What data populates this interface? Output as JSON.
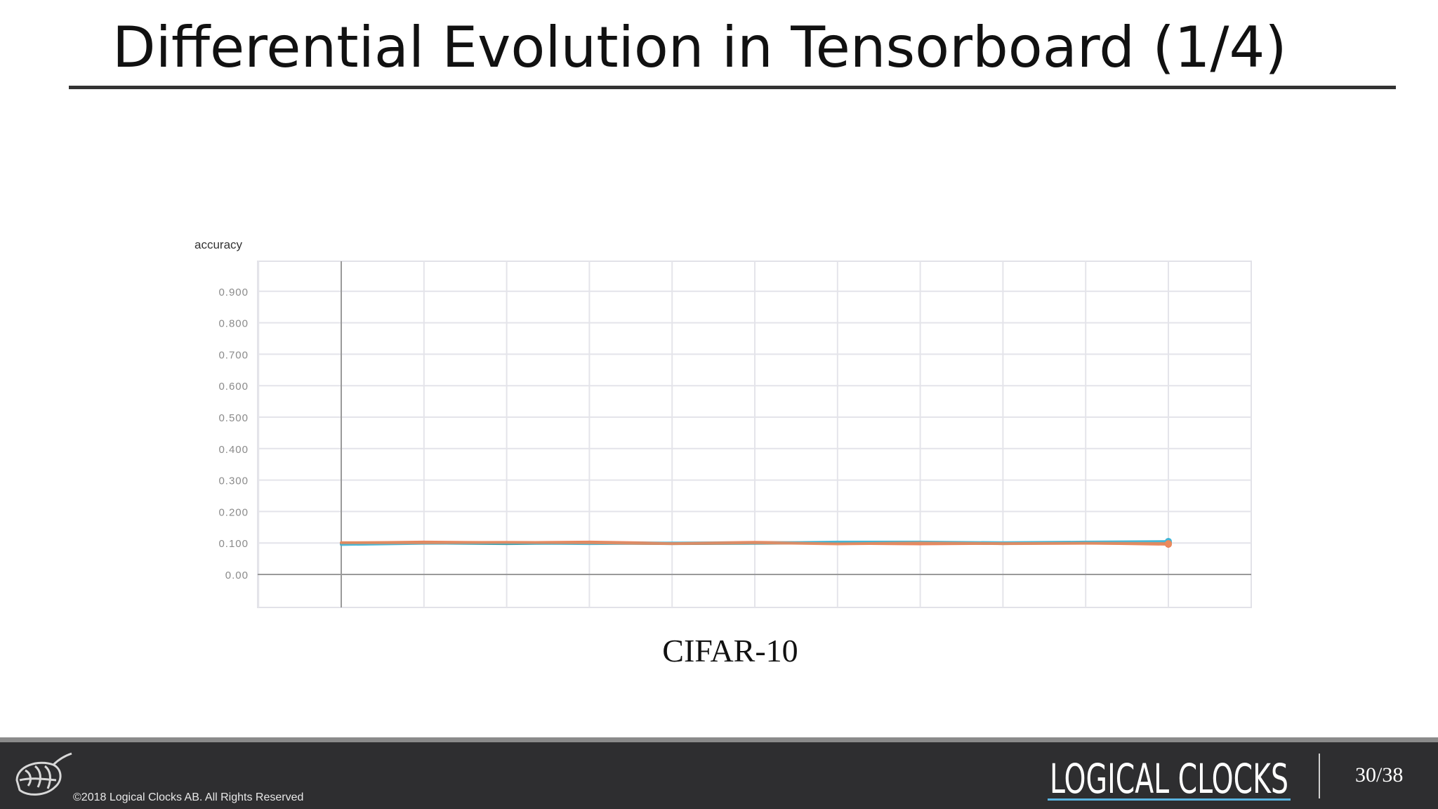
{
  "slide": {
    "title": "Differential Evolution in Tensorboard (1/4)",
    "caption": "CIFAR-10",
    "page_number": "30/38"
  },
  "footer": {
    "copyright": "©2018 Logical Clocks AB. All Rights Reserved",
    "logo_text": "LOGICAL CLOCKS",
    "logo_icon": "hop-cone-icon"
  },
  "colors": {
    "title_text": "#111111",
    "footer_bg": "#2e2e30",
    "footer_band": "#8a8a8a",
    "logo_accent": "#5ab4e0"
  },
  "chart_data": {
    "type": "line",
    "title": "accuracy",
    "ylim": [
      0,
      1
    ],
    "yticks": [
      "0.00",
      "0.100",
      "0.200",
      "0.300",
      "0.400",
      "0.500",
      "0.600",
      "0.700",
      "0.800",
      "0.900"
    ],
    "ytick_values": [
      0,
      0.1,
      0.2,
      0.3,
      0.4,
      0.5,
      0.6,
      0.7,
      0.8,
      0.9
    ],
    "xlim": [
      0,
      11
    ],
    "x": [
      0,
      1,
      2,
      3,
      4,
      5,
      6,
      7,
      8,
      9,
      10
    ],
    "grid": true,
    "series": [
      {
        "color": "#e8734a",
        "values": [
          0.1,
          0.103,
          0.101,
          0.103,
          0.099,
          0.102,
          0.099,
          0.097,
          0.099,
          0.1,
          0.096
        ]
      },
      {
        "color": "#2a8c8c",
        "values": [
          0.099,
          0.1,
          0.098,
          0.1,
          0.098,
          0.099,
          0.101,
          0.102,
          0.098,
          0.101,
          0.101
        ]
      },
      {
        "color": "#3fb5d6",
        "values": [
          0.095,
          0.099,
          0.1,
          0.098,
          0.1,
          0.1,
          0.103,
          0.103,
          0.101,
          0.103,
          0.105
        ]
      },
      {
        "color": "#ec8a5c",
        "values": [
          0.101,
          0.101,
          0.102,
          0.101,
          0.098,
          0.101,
          0.097,
          0.1,
          0.098,
          0.099,
          0.098
        ]
      }
    ]
  }
}
